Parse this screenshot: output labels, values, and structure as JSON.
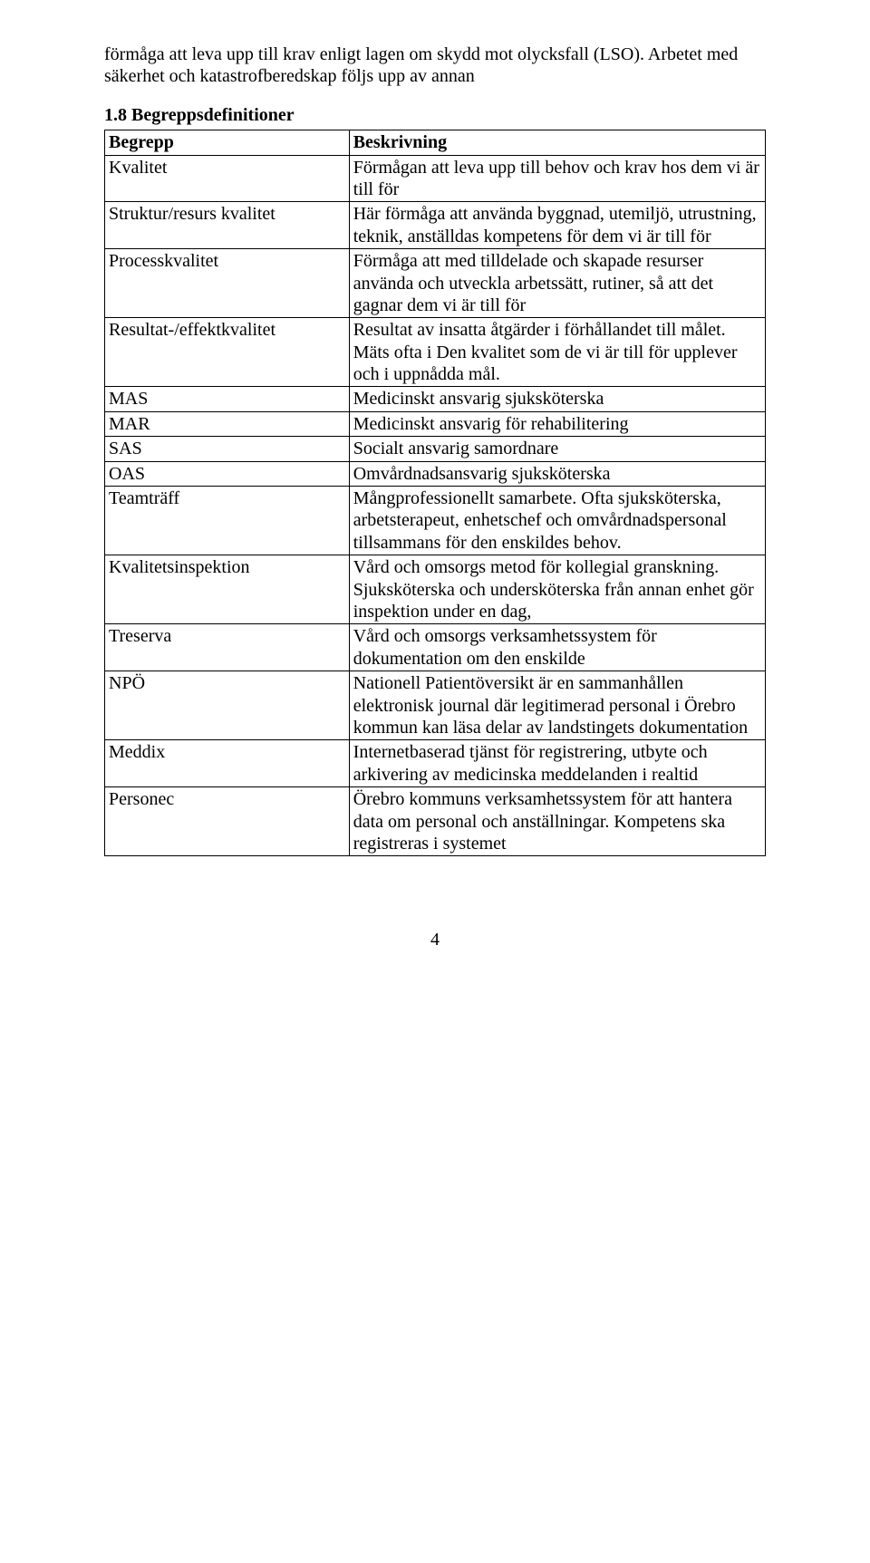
{
  "intro": "förmåga att leva upp till krav enligt lagen om skydd mot olycksfall (LSO). Arbetet med säkerhet och katastrofberedskap följs upp av annan",
  "heading": "1.8  Begreppsdefinitioner",
  "table": {
    "header": {
      "left": "Begrepp",
      "right": "Beskrivning"
    },
    "rows": [
      {
        "left": "Kvalitet",
        "right": "Förmågan att leva upp till behov och krav hos dem vi är till för"
      },
      {
        "left": "Struktur/resurs kvalitet",
        "right": "Här förmåga att använda byggnad, utemiljö, utrustning, teknik, anställdas kompetens för dem vi är till för"
      },
      {
        "left": "Processkvalitet",
        "right": "Förmåga att med tilldelade och skapade resurser använda och utveckla arbetssätt, rutiner, så att det gagnar dem vi är till för"
      },
      {
        "left": "Resultat-/effektkvalitet",
        "right": "Resultat av insatta åtgärder i förhållandet till målet. Mäts ofta i Den kvalitet som de vi är till för upplever och i uppnådda mål."
      },
      {
        "left": "MAS",
        "right": "Medicinskt ansvarig sjuksköterska"
      },
      {
        "left": "MAR",
        "right": "Medicinskt ansvarig för rehabilitering"
      },
      {
        "left": "SAS",
        "right": "Socialt ansvarig samordnare"
      },
      {
        "left": "OAS",
        "right": "Omvårdnadsansvarig sjuksköterska"
      },
      {
        "left": "Teamträff",
        "right": "Mångprofessionellt samarbete. Ofta sjuksköterska, arbetsterapeut, enhetschef och omvårdnadspersonal tillsammans för den enskildes behov."
      },
      {
        "left": "Kvalitetsinspektion",
        "right": "Vård och omsorgs metod för kollegial granskning. Sjuksköterska och undersköterska från annan enhet gör inspektion under en dag,"
      },
      {
        "left": "Treserva",
        "right": "Vård och omsorgs verksamhetssystem för dokumentation om den enskilde"
      },
      {
        "left": "NPÖ",
        "right": "Nationell Patientöversikt är en sammanhållen elektronisk journal där legitimerad personal i Örebro kommun kan läsa delar av landstingets dokumentation"
      },
      {
        "left": "Meddix",
        "right": "Internetbaserad tjänst för registrering, utbyte och arkivering av medicinska meddelanden i realtid"
      },
      {
        "left": "Personec",
        "right": "Örebro kommuns verksamhetssystem för att hantera data om personal och anställningar. Kompetens ska registreras i systemet"
      }
    ]
  },
  "pageNumber": "4"
}
